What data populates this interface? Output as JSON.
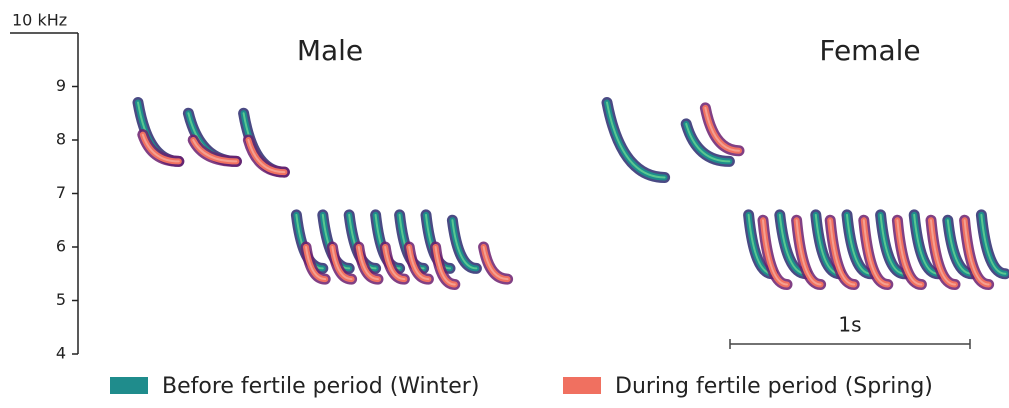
{
  "chart_data": {
    "type": "spectrogram",
    "ylim": [
      4,
      10
    ],
    "yticks": [
      4,
      5,
      6,
      7,
      8,
      9,
      {
        "value": 10,
        "label": "10 kHz"
      }
    ],
    "scale_bar": {
      "label": "1s",
      "seconds": 1
    },
    "series": [
      {
        "name": "Before fertile period (Winter)",
        "color": "#1f8c8c"
      },
      {
        "name": "During fertile period (Spring)",
        "color": "#f07060"
      }
    ],
    "panels": [
      {
        "title": "Male",
        "syllables": [
          [
            {
              "t": [
                0.0,
                0.17
              ],
              "f": [
                8.7,
                7.6
              ]
            },
            {
              "t": [
                0.21,
                0.41
              ],
              "f": [
                8.5,
                7.6
              ]
            },
            {
              "t": [
                0.44,
                0.61
              ],
              "f": [
                8.5,
                7.4
              ]
            },
            {
              "t": [
                0.66,
                0.77
              ],
              "f": [
                6.6,
                5.6
              ]
            },
            {
              "t": [
                0.77,
                0.88
              ],
              "f": [
                6.6,
                5.6
              ]
            },
            {
              "t": [
                0.88,
                0.99
              ],
              "f": [
                6.6,
                5.6
              ]
            },
            {
              "t": [
                0.99,
                1.09
              ],
              "f": [
                6.6,
                5.6
              ]
            },
            {
              "t": [
                1.09,
                1.19
              ],
              "f": [
                6.6,
                5.6
              ]
            },
            {
              "t": [
                1.2,
                1.3
              ],
              "f": [
                6.6,
                5.6
              ]
            },
            {
              "t": [
                1.31,
                1.41
              ],
              "f": [
                6.5,
                5.6
              ]
            }
          ],
          [
            {
              "t": [
                0.02,
                0.17
              ],
              "f": [
                8.1,
                7.6
              ]
            },
            {
              "t": [
                0.23,
                0.41
              ],
              "f": [
                8.0,
                7.6
              ]
            },
            {
              "t": [
                0.46,
                0.61
              ],
              "f": [
                8.0,
                7.4
              ]
            },
            {
              "t": [
                0.7,
                0.78
              ],
              "f": [
                6.0,
                5.4
              ]
            },
            {
              "t": [
                0.81,
                0.89
              ],
              "f": [
                6.0,
                5.4
              ]
            },
            {
              "t": [
                0.92,
                1.0
              ],
              "f": [
                6.0,
                5.4
              ]
            },
            {
              "t": [
                1.03,
                1.11
              ],
              "f": [
                6.0,
                5.4
              ]
            },
            {
              "t": [
                1.13,
                1.21
              ],
              "f": [
                6.0,
                5.4
              ]
            },
            {
              "t": [
                1.24,
                1.32
              ],
              "f": [
                6.0,
                5.3
              ]
            },
            {
              "t": [
                1.44,
                1.54
              ],
              "f": [
                6.0,
                5.4
              ]
            }
          ]
        ]
      },
      {
        "title": "Female",
        "syllables": [
          [
            {
              "t": [
                0.0,
                0.24
              ],
              "f": [
                8.7,
                7.3
              ]
            },
            {
              "t": [
                0.33,
                0.51
              ],
              "f": [
                8.3,
                7.6
              ]
            },
            {
              "t": [
                0.59,
                0.69
              ],
              "f": [
                6.6,
                5.5
              ]
            },
            {
              "t": [
                0.72,
                0.83
              ],
              "f": [
                6.6,
                5.5
              ]
            },
            {
              "t": [
                0.87,
                0.97
              ],
              "f": [
                6.6,
                5.5
              ]
            },
            {
              "t": [
                1.0,
                1.1
              ],
              "f": [
                6.6,
                5.5
              ]
            },
            {
              "t": [
                1.14,
                1.24
              ],
              "f": [
                6.6,
                5.5
              ]
            },
            {
              "t": [
                1.28,
                1.38
              ],
              "f": [
                6.6,
                5.5
              ]
            },
            {
              "t": [
                1.42,
                1.52
              ],
              "f": [
                6.5,
                5.5
              ]
            },
            {
              "t": [
                1.56,
                1.66
              ],
              "f": [
                6.6,
                5.5
              ]
            }
          ],
          [
            {
              "t": [
                0.41,
                0.55
              ],
              "f": [
                8.6,
                7.8
              ]
            },
            {
              "t": [
                0.65,
                0.75
              ],
              "f": [
                6.5,
                5.3
              ]
            },
            {
              "t": [
                0.79,
                0.89
              ],
              "f": [
                6.5,
                5.3
              ]
            },
            {
              "t": [
                0.93,
                1.03
              ],
              "f": [
                6.5,
                5.3
              ]
            },
            {
              "t": [
                1.07,
                1.17
              ],
              "f": [
                6.5,
                5.3
              ]
            },
            {
              "t": [
                1.21,
                1.31
              ],
              "f": [
                6.5,
                5.3
              ]
            },
            {
              "t": [
                1.35,
                1.45
              ],
              "f": [
                6.5,
                5.3
              ]
            },
            {
              "t": [
                1.49,
                1.59
              ],
              "f": [
                6.5,
                5.3
              ]
            }
          ]
        ]
      }
    ]
  }
}
